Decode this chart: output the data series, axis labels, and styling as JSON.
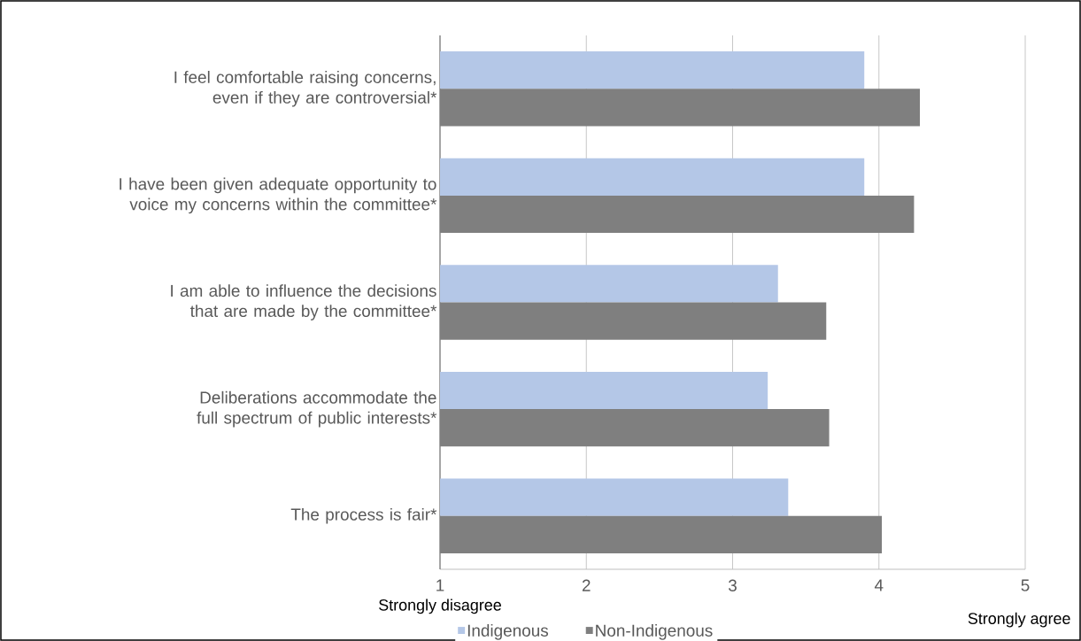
{
  "chart_data": {
    "type": "bar",
    "orientation": "horizontal",
    "categories": [
      "I feel comfortable raising concerns, even if they are controversial*",
      "I have been given adequate opportunity to voice my concerns within the committee*",
      "I am able to influence the decisions that are made by the committee*",
      "Deliberations accommodate the full spectrum of public interests*",
      "The process is fair*"
    ],
    "series": [
      {
        "name": "Indigenous",
        "color": "#b4c7e7",
        "values": [
          3.9,
          3.9,
          3.31,
          3.24,
          3.38
        ]
      },
      {
        "name": "Non-Indigenous",
        "color": "#7f7f7f",
        "values": [
          4.28,
          4.24,
          3.64,
          3.66,
          4.02
        ]
      }
    ],
    "xlim": [
      1,
      5
    ],
    "xticks": [
      1,
      2,
      3,
      4,
      5
    ],
    "grid": "x",
    "legend": "bottom",
    "annotations": [
      "Strongly disagree",
      "Strongly agree"
    ]
  }
}
